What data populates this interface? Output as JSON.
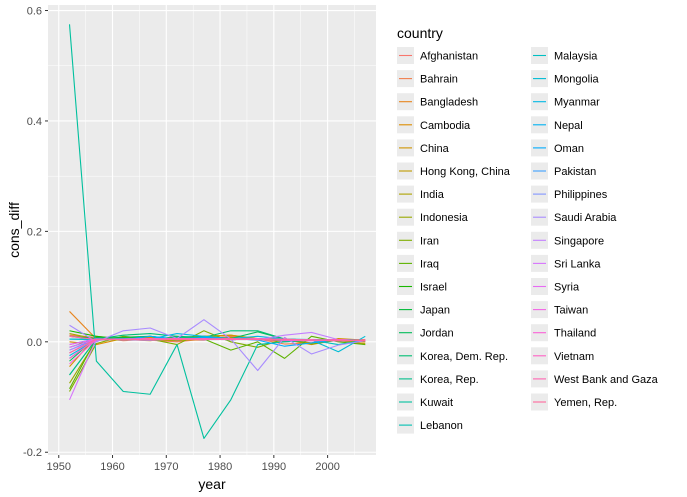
{
  "chart_data": {
    "type": "line",
    "title": "",
    "xlabel": "year",
    "ylabel": "cons_diff",
    "xlim": [
      1948,
      2009
    ],
    "ylim": [
      -0.205,
      0.61
    ],
    "x_ticks": [
      1950,
      1960,
      1970,
      1980,
      1990,
      2000
    ],
    "y_ticks": [
      -0.2,
      0.0,
      0.2,
      0.4,
      0.6
    ],
    "y_tick_labels": [
      "-0.2",
      "0.0",
      "0.2",
      "0.4",
      "0.6"
    ],
    "grid": true,
    "background": "#ebebeb",
    "legend": {
      "title": "country",
      "placement": "right",
      "columns": 2
    },
    "x": [
      1952,
      1957,
      1962,
      1967,
      1972,
      1977,
      1982,
      1987,
      1992,
      1997,
      2002,
      2007
    ],
    "series": [
      {
        "name": "Afghanistan",
        "color": "#F8766D",
        "values": [
          -0.02,
          0.004,
          0.005,
          0.003,
          0.0,
          0.005,
          0.01,
          0.005,
          0.0,
          0.003,
          0.004,
          -0.005
        ]
      },
      {
        "name": "Bahrain",
        "color": "#F07E4D",
        "values": [
          0.012,
          0.008,
          0.002,
          0.005,
          0.004,
          0.003,
          0.01,
          0.005,
          -0.004,
          -0.002,
          0.003,
          0.004
        ]
      },
      {
        "name": "Bangladesh",
        "color": "#E7851E",
        "values": [
          0.055,
          0.005,
          0.004,
          0.003,
          0.006,
          0.005,
          0.006,
          0.004,
          0.005,
          0.003,
          0.004,
          0.003
        ]
      },
      {
        "name": "Cambodia",
        "color": "#DC8D00",
        "values": [
          0.0,
          -0.005,
          0.006,
          0.008,
          0.002,
          0.01,
          0.012,
          0.005,
          0.004,
          -0.005,
          0.004,
          0.0
        ]
      },
      {
        "name": "China",
        "color": "#CF9400",
        "values": [
          -0.045,
          0.01,
          0.004,
          0.002,
          0.008,
          0.01,
          0.012,
          0.006,
          0.005,
          -0.002,
          0.006,
          0.003
        ]
      },
      {
        "name": "Hong Kong, China",
        "color": "#BF9B00",
        "values": [
          0.01,
          0.004,
          0.005,
          0.003,
          0.002,
          0.005,
          0.004,
          0.006,
          0.005,
          0.003,
          0.002,
          -0.003
        ]
      },
      {
        "name": "India",
        "color": "#ADA200",
        "values": [
          0.015,
          0.005,
          0.004,
          0.006,
          0.003,
          0.006,
          0.008,
          0.005,
          0.004,
          0.003,
          0.004,
          0.002
        ]
      },
      {
        "name": "Indonesia",
        "color": "#98A800",
        "values": [
          -0.075,
          0.003,
          0.004,
          0.005,
          0.008,
          0.01,
          0.006,
          0.004,
          0.002,
          0.003,
          0.002,
          0.001
        ]
      },
      {
        "name": "Iran",
        "color": "#7FAE00",
        "values": [
          -0.09,
          -0.003,
          0.01,
          0.005,
          -0.005,
          0.02,
          0.0,
          -0.01,
          0.005,
          -0.004,
          0.003,
          0.001
        ]
      },
      {
        "name": "Iraq",
        "color": "#5EB300",
        "values": [
          -0.085,
          0.006,
          0.008,
          0.003,
          0.01,
          0.005,
          -0.015,
          0.0,
          -0.03,
          0.01,
          0.0,
          -0.005
        ]
      },
      {
        "name": "Israel",
        "color": "#19B700",
        "values": [
          0.02,
          0.01,
          0.005,
          0.004,
          0.006,
          0.005,
          0.004,
          0.006,
          0.003,
          0.004,
          0.002,
          0.003
        ]
      },
      {
        "name": "Japan",
        "color": "#00BA38",
        "values": [
          0.01,
          0.006,
          0.008,
          0.01,
          0.004,
          0.006,
          0.004,
          0.005,
          0.002,
          0.003,
          0.004,
          0.002
        ]
      },
      {
        "name": "Jordan",
        "color": "#00BC59",
        "values": [
          -0.035,
          0.008,
          0.005,
          0.01,
          0.004,
          0.01,
          0.006,
          0.018,
          0.005,
          0.003,
          0.004,
          0.002
        ]
      },
      {
        "name": "Korea, Dem. Rep.",
        "color": "#00BE73",
        "values": [
          -0.06,
          0.005,
          0.012,
          0.015,
          0.01,
          0.008,
          0.02,
          0.02,
          0.005,
          0.003,
          0.004,
          0.002
        ]
      },
      {
        "name": "Korea, Rep.",
        "color": "#00BF8A",
        "values": [
          -0.06,
          0.005,
          0.004,
          0.003,
          0.008,
          0.006,
          0.005,
          0.006,
          0.004,
          0.003,
          0.004,
          0.003
        ]
      },
      {
        "name": "Kuwait",
        "color": "#00C09E",
        "values": [
          0.575,
          -0.035,
          -0.09,
          -0.095,
          -0.005,
          -0.175,
          -0.105,
          -0.005,
          0.0,
          0.003,
          0.002,
          0.003
        ]
      },
      {
        "name": "Lebanon",
        "color": "#00C0B1",
        "values": [
          0.005,
          0.004,
          0.006,
          0.005,
          0.004,
          0.006,
          0.004,
          0.005,
          0.003,
          0.002,
          0.003,
          0.002
        ]
      },
      {
        "name": "Malaysia",
        "color": "#00BFC3",
        "values": [
          -0.01,
          0.005,
          0.004,
          0.006,
          0.005,
          0.004,
          0.006,
          0.004,
          0.005,
          0.003,
          -0.005,
          0.003
        ]
      },
      {
        "name": "Mongolia",
        "color": "#00BCD4",
        "values": [
          0.005,
          0.004,
          0.006,
          0.005,
          0.004,
          0.005,
          0.004,
          0.005,
          0.004,
          0.003,
          -0.018,
          0.01
        ]
      },
      {
        "name": "Myanmar",
        "color": "#00B8E4",
        "values": [
          -0.025,
          0.004,
          0.006,
          0.005,
          0.015,
          0.01,
          0.006,
          0.01,
          0.005,
          0.004,
          0.003,
          0.002
        ]
      },
      {
        "name": "Nepal",
        "color": "#00B2F2",
        "values": [
          -0.03,
          0.005,
          0.004,
          0.006,
          0.005,
          0.004,
          0.005,
          0.004,
          0.003,
          0.002,
          0.003,
          0.002
        ]
      },
      {
        "name": "Oman",
        "color": "#00ABFD",
        "values": [
          -0.015,
          0.005,
          0.004,
          0.01,
          0.005,
          0.008,
          0.006,
          0.003,
          -0.008,
          -0.002,
          0.004,
          0.003
        ]
      },
      {
        "name": "Pakistan",
        "color": "#3DA1FF",
        "values": [
          -0.005,
          0.006,
          0.004,
          0.005,
          0.006,
          0.005,
          0.004,
          0.005,
          0.004,
          0.003,
          0.002,
          0.003
        ]
      },
      {
        "name": "Philippines",
        "color": "#8296FF",
        "values": [
          -0.02,
          0.004,
          0.005,
          0.006,
          0.004,
          0.005,
          0.004,
          0.005,
          0.004,
          0.003,
          0.002,
          0.003
        ]
      },
      {
        "name": "Saudi Arabia",
        "color": "#A88BFF",
        "values": [
          0.03,
          0.0,
          0.02,
          0.025,
          0.006,
          0.04,
          0.005,
          -0.052,
          0.008,
          -0.022,
          -0.006,
          0.002
        ]
      },
      {
        "name": "Singapore",
        "color": "#C37FFF",
        "values": [
          -0.015,
          0.003,
          0.005,
          0.004,
          0.006,
          0.005,
          0.006,
          0.004,
          0.012,
          0.017,
          0.004,
          0.002
        ]
      },
      {
        "name": "Sri Lanka",
        "color": "#D774FD",
        "values": [
          -0.105,
          0.005,
          0.004,
          0.003,
          0.005,
          0.004,
          0.005,
          0.004,
          0.003,
          0.002,
          0.003,
          0.002
        ]
      },
      {
        "name": "Syria",
        "color": "#E76BF3",
        "values": [
          -0.01,
          0.004,
          0.005,
          0.006,
          0.004,
          0.005,
          0.004,
          0.005,
          0.004,
          0.003,
          0.002,
          0.003
        ]
      },
      {
        "name": "Taiwan",
        "color": "#F365E6",
        "values": [
          -0.005,
          0.005,
          0.004,
          0.005,
          0.006,
          0.004,
          0.005,
          0.006,
          0.004,
          0.003,
          0.004,
          0.002
        ]
      },
      {
        "name": "Thailand",
        "color": "#FB61D7",
        "values": [
          -0.04,
          0.004,
          0.005,
          0.004,
          0.005,
          0.006,
          0.004,
          0.005,
          0.003,
          0.002,
          0.003,
          0.002
        ]
      },
      {
        "name": "Vietnam",
        "color": "#FF61C5",
        "values": [
          -0.03,
          0.005,
          0.004,
          0.006,
          0.005,
          0.004,
          0.005,
          0.004,
          0.003,
          0.004,
          0.002,
          0.003
        ]
      },
      {
        "name": "West Bank and Gaza",
        "color": "#FF64B1",
        "values": [
          0.01,
          0.004,
          0.005,
          0.004,
          0.006,
          0.005,
          0.004,
          0.005,
          0.004,
          0.003,
          0.004,
          0.002
        ]
      },
      {
        "name": "Yemen, Rep.",
        "color": "#FF689C",
        "values": [
          -0.02,
          0.005,
          0.004,
          0.005,
          0.004,
          0.005,
          0.006,
          0.004,
          0.005,
          0.003,
          0.002,
          0.003
        ]
      }
    ]
  }
}
